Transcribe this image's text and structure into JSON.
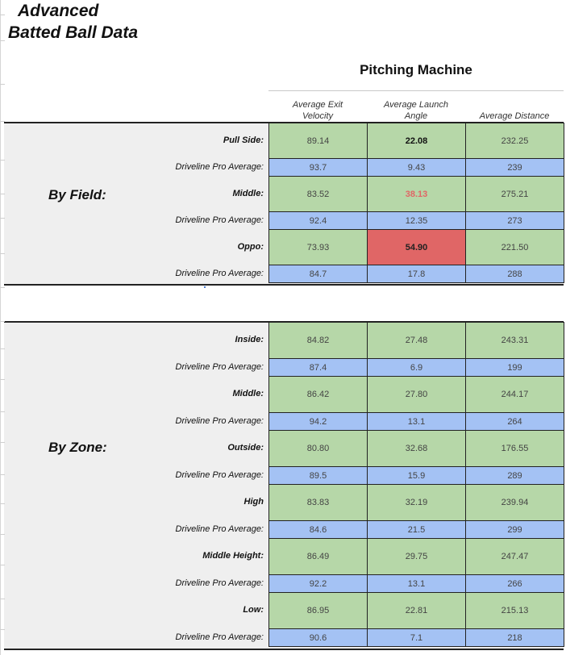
{
  "title": {
    "line1": "Advanced",
    "line2": "Batted Ball Data"
  },
  "section_header": "Pitching Machine",
  "columns": [
    {
      "line1": "Average Exit",
      "line2": "Velocity"
    },
    {
      "line1": "Average Launch",
      "line2": "Angle"
    },
    {
      "line1": "",
      "line2": "Average Distance"
    }
  ],
  "by_field": {
    "label": "By Field:",
    "rows": [
      {
        "label": "Pull Side:",
        "values": [
          "89.14",
          "22.08",
          "232.25"
        ]
      },
      {
        "label": "Driveline Pro Average:",
        "values": [
          "93.7",
          "9.43",
          "239"
        ]
      },
      {
        "label": "Middle:",
        "values": [
          "83.52",
          "38.13",
          "275.21"
        ]
      },
      {
        "label": "Driveline Pro Average:",
        "values": [
          "92.4",
          "12.35",
          "273"
        ]
      },
      {
        "label": "Oppo:",
        "values": [
          "73.93",
          "54.90",
          "221.50"
        ]
      },
      {
        "label": "Driveline Pro Average:",
        "values": [
          "84.7",
          "17.8",
          "288"
        ]
      }
    ]
  },
  "by_zone": {
    "label": "By Zone:",
    "rows": [
      {
        "label": "Inside:",
        "values": [
          "84.82",
          "27.48",
          "243.31"
        ]
      },
      {
        "label": "Driveline Pro Average:",
        "values": [
          "87.4",
          "6.9",
          "199"
        ]
      },
      {
        "label": "Middle:",
        "values": [
          "86.42",
          "27.80",
          "244.17"
        ]
      },
      {
        "label": "Driveline Pro Average:",
        "values": [
          "94.2",
          "13.1",
          "264"
        ]
      },
      {
        "label": "Outside:",
        "values": [
          "80.80",
          "32.68",
          "176.55"
        ]
      },
      {
        "label": "Driveline Pro Average:",
        "values": [
          "89.5",
          "15.9",
          "289"
        ]
      },
      {
        "label": "High",
        "values": [
          "83.83",
          "32.19",
          "239.94"
        ]
      },
      {
        "label": "Driveline Pro Average:",
        "values": [
          "84.6",
          "21.5",
          "299"
        ]
      },
      {
        "label": "Middle Height:",
        "values": [
          "86.49",
          "29.75",
          "247.47"
        ]
      },
      {
        "label": "Driveline Pro Average:",
        "values": [
          "92.2",
          "13.1",
          "266"
        ]
      },
      {
        "label": "Low:",
        "values": [
          "86.95",
          "22.81",
          "215.13"
        ]
      },
      {
        "label": "Driveline Pro Average:",
        "values": [
          "90.6",
          "7.1",
          "218"
        ]
      }
    ]
  },
  "colors": {
    "machine_cell": "#b6d7a8",
    "pro_average_cell": "#a4c2f4",
    "highlight_cell": "#e06666",
    "highlight_text": "#e06666",
    "panel_background": "#efefef"
  }
}
